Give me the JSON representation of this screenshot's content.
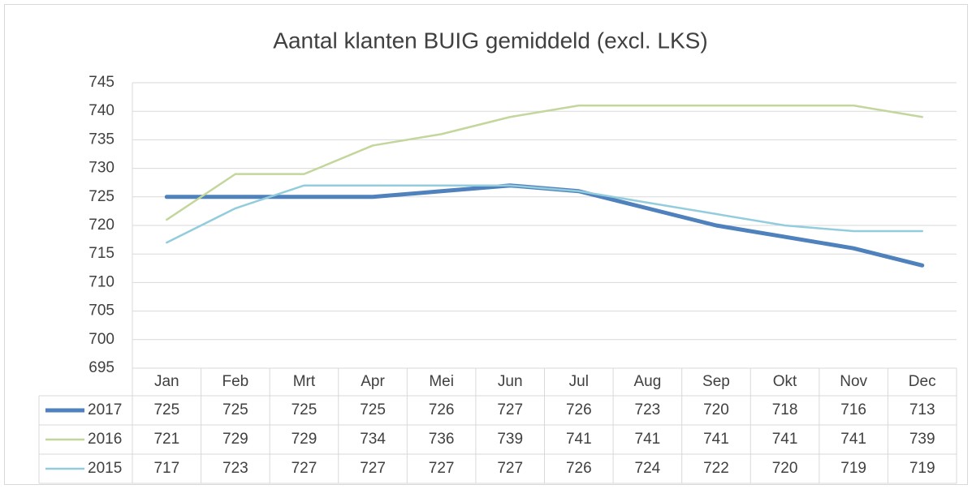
{
  "chart_data": {
    "type": "line",
    "title": "Aantal klanten BUIG gemiddeld (excl. LKS)",
    "categories": [
      "Jan",
      "Feb",
      "Mrt",
      "Apr",
      "Mei",
      "Jun",
      "Jul",
      "Aug",
      "Sep",
      "Okt",
      "Nov",
      "Dec"
    ],
    "series": [
      {
        "name": "2017",
        "color": "#4f81bd",
        "line_width": 5,
        "values": [
          725,
          725,
          725,
          725,
          726,
          727,
          726,
          723,
          720,
          718,
          716,
          713
        ]
      },
      {
        "name": "2016",
        "color": "#c3d69b",
        "line_width": 2.5,
        "values": [
          721,
          729,
          729,
          734,
          736,
          739,
          741,
          741,
          741,
          741,
          741,
          739
        ]
      },
      {
        "name": "2015",
        "color": "#93cddd",
        "line_width": 2.5,
        "values": [
          717,
          723,
          727,
          727,
          727,
          727,
          726,
          724,
          722,
          720,
          719,
          719
        ]
      }
    ],
    "ylim": [
      695,
      745
    ],
    "yticks": [
      695,
      700,
      705,
      710,
      715,
      720,
      725,
      730,
      735,
      740,
      745
    ],
    "grid": true
  }
}
